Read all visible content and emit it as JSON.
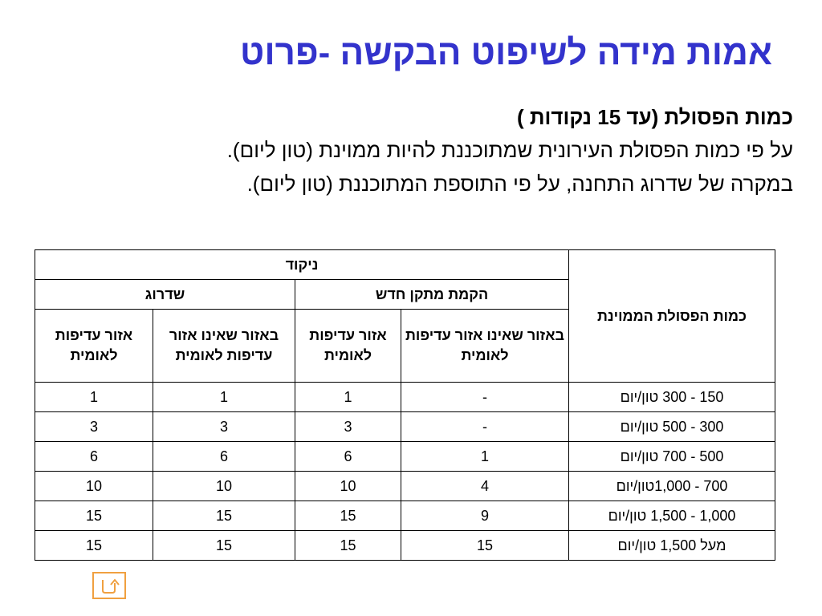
{
  "title": "אמות מידה לשיפוט הבקשה -פרוט",
  "intro": {
    "subhead": "כמות הפסולת (עד 15 נקודות )",
    "line1": "על פי כמות הפסולת העירונית שמתוכננת להיות ממוינת (טון ליום).",
    "line2": "במקרה של שדרוג התחנה, על פי התוספת המתוכננת (טון ליום)."
  },
  "table": {
    "row_header": "כמות הפסולת הממוינת",
    "score_header": "ניקוד",
    "group_new": "הקמת מתקן חדש",
    "group_upgrade": "שדרוג",
    "sub_not_priority": "באזור שאינו אזור עדיפות לאומית",
    "sub_priority": "אזור עדיפות לאומית",
    "rows": [
      {
        "range": "150 - 300 טון/יום",
        "new_not_priority": "-",
        "new_priority": "1",
        "upg_not_priority": "1",
        "upg_priority": "1"
      },
      {
        "range": "300 - 500 טון/יום",
        "new_not_priority": "-",
        "new_priority": "3",
        "upg_not_priority": "3",
        "upg_priority": "3"
      },
      {
        "range": "500 - 700 טון/יום",
        "new_not_priority": "1",
        "new_priority": "6",
        "upg_not_priority": "6",
        "upg_priority": "6"
      },
      {
        "range": "700 - 1,000טון/יום",
        "new_not_priority": "4",
        "new_priority": "10",
        "upg_not_priority": "10",
        "upg_priority": "10"
      },
      {
        "range": "1,000 - 1,500 טון/יום",
        "new_not_priority": "9",
        "new_priority": "15",
        "upg_not_priority": "15",
        "upg_priority": "15"
      },
      {
        "range": "מעל 1,500 טון/יום",
        "new_not_priority": "15",
        "new_priority": "15",
        "upg_not_priority": "15",
        "upg_priority": "15"
      }
    ]
  },
  "nav": {
    "back_icon": "return-arrow-icon",
    "accent_color": "#f0a040"
  },
  "colors": {
    "title": "#3333cc"
  }
}
